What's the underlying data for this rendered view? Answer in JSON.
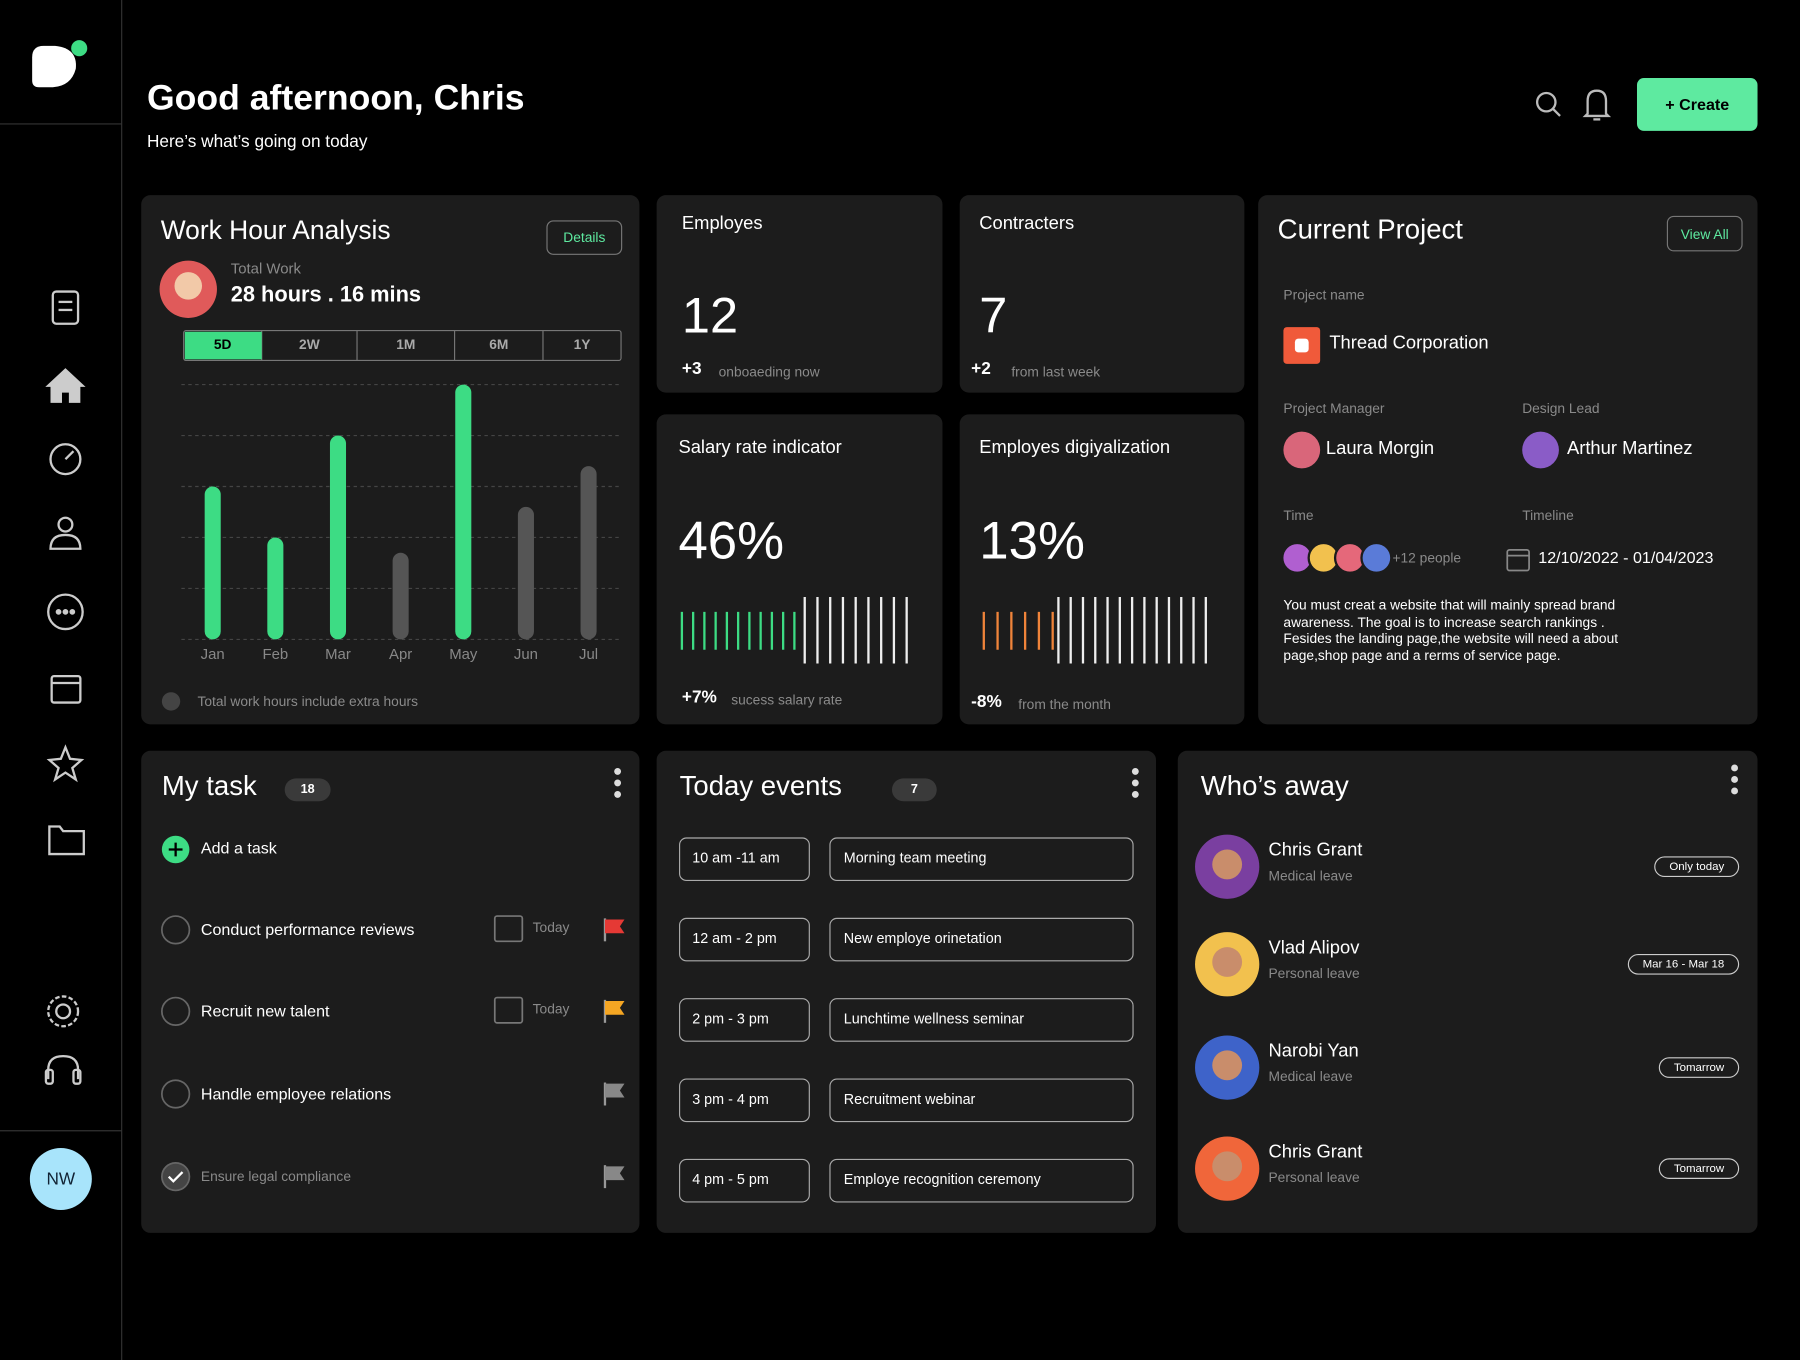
{
  "sidebar": {
    "avatar": "NW"
  },
  "header": {
    "title": "Good afternoon, Chris",
    "subtitle": "Here’s what’s going on today",
    "create": "+ Create"
  },
  "work_hours": {
    "title": "Work Hour Analysis",
    "details": "Details",
    "total_label": "Total Work",
    "total": "28 hours . 16 mins",
    "ranges": [
      "5D",
      "2W",
      "1M",
      "6M",
      "1Y"
    ],
    "active_range": 0,
    "note": "Total work hours include extra hours"
  },
  "chart_data": {
    "type": "bar",
    "categories": [
      "Jan",
      "Feb",
      "Mar",
      "Apr",
      "May",
      "Jun",
      "Jul"
    ],
    "values": [
      3,
      2,
      4,
      1.7,
      5,
      2.6,
      3.4
    ],
    "colors": [
      "#3ddc84",
      "#3ddc84",
      "#3ddc84",
      "#555555",
      "#3ddc84",
      "#555555",
      "#555555"
    ],
    "ylim": [
      0,
      5
    ],
    "yticks": [
      0,
      1,
      2,
      3,
      4,
      5
    ],
    "grid": true
  },
  "employees": {
    "title": "Employes",
    "value": "12",
    "delta": "+3",
    "note": "onboaeding now"
  },
  "contractors": {
    "title": "Contracters",
    "value": "7",
    "delta": "+2",
    "note": "from last week"
  },
  "salary": {
    "title": "Salary rate indicator",
    "value": "46%",
    "delta": "+7%",
    "note": "sucess salary rate"
  },
  "digitalization": {
    "title": "Employes digiyalization",
    "value": "13%",
    "delta": "-8%",
    "note": "from the month"
  },
  "project": {
    "title": "Current Project",
    "view_all": "View All",
    "name_label": "Project name",
    "name": "Thread Corporation",
    "manager_label": "Project Manager",
    "manager": "Laura Morgin",
    "lead_label": "Design Lead",
    "lead": "Arthur Martinez",
    "time_label": "Time",
    "people": "+12 people",
    "timeline_label": "Timeline",
    "timeline": "12/10/2022 - 01/04/2023",
    "description": "You must creat a website that will mainly spread brand awareness. The goal is to increase search rankings . Fesides the landing page,the website will need a about page,shop page and a rerms of service page."
  },
  "tasks": {
    "title": "My task",
    "count": "18",
    "add": "Add a task",
    "items": [
      {
        "text": "Conduct performance reviews",
        "due": "Today",
        "flag": "#e53935",
        "done": false
      },
      {
        "text": "Recruit new talent",
        "due": "Today",
        "flag": "#f5a623",
        "done": false
      },
      {
        "text": "Handle employee relations",
        "flag": "#888888",
        "done": false
      },
      {
        "text": "Ensure legal compliance",
        "flag": "#888888",
        "done": true
      }
    ]
  },
  "events": {
    "title": "Today events",
    "count": "7",
    "items": [
      {
        "time": "10 am -11 am",
        "name": "Morning team meeting"
      },
      {
        "time": "12 am - 2 pm",
        "name": "New employe orinetation"
      },
      {
        "time": "2 pm - 3 pm",
        "name": "Lunchtime wellness seminar"
      },
      {
        "time": "3 pm - 4 pm",
        "name": "Recruitment webinar"
      },
      {
        "time": "4 pm - 5 pm",
        "name": "Employe recognition ceremony"
      }
    ]
  },
  "away": {
    "title": "Who’s away",
    "items": [
      {
        "name": "Chris Grant",
        "reason": "Medical leave",
        "when": "Only today"
      },
      {
        "name": "Vlad Alipov",
        "reason": "Personal leave",
        "when": "Mar 16 - Mar 18"
      },
      {
        "name": "Narobi Yan",
        "reason": "Medical leave",
        "when": "Tomarrow"
      },
      {
        "name": "Chris Grant",
        "reason": "Personal leave",
        "when": "Tomarrow"
      }
    ]
  }
}
